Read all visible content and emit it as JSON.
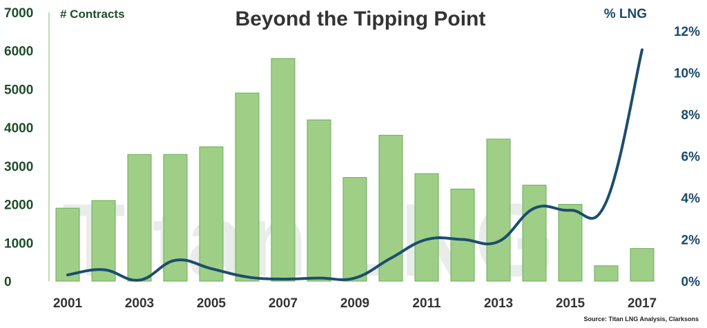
{
  "chart_data": {
    "type": "bar+line",
    "title": "Beyond the Tipping Point",
    "source": "Source: Titan LNG Analysis, Clarksons",
    "watermark_text": "Titan LNG",
    "categories": [
      "2001",
      "2002",
      "2003",
      "2004",
      "2005",
      "2006",
      "2007",
      "2008",
      "2009",
      "2010",
      "2011",
      "2012",
      "2013",
      "2014",
      "2015",
      "2016",
      "2017"
    ],
    "x_tick_labels": [
      "2001",
      "2003",
      "2005",
      "2007",
      "2009",
      "2011",
      "2013",
      "2015",
      "2017"
    ],
    "series": [
      {
        "name": "# Contracts",
        "type": "bar",
        "axis": "left",
        "values": [
          1900,
          2100,
          3300,
          3300,
          3500,
          4900,
          5800,
          4200,
          2700,
          3800,
          2800,
          2400,
          3700,
          2500,
          2000,
          400,
          850
        ]
      },
      {
        "name": "% LNG",
        "type": "line",
        "axis": "right",
        "values": [
          0.3,
          0.55,
          0.05,
          1.0,
          0.6,
          0.2,
          0.1,
          0.15,
          0.15,
          1.1,
          2.0,
          2.0,
          1.9,
          3.5,
          3.4,
          3.8,
          11.1
        ]
      }
    ],
    "y_left": {
      "label": "# Contracts",
      "lim": [
        0,
        7000
      ],
      "ticks": [
        "0",
        "1000",
        "2000",
        "3000",
        "4000",
        "5000",
        "6000",
        "7000"
      ]
    },
    "y_right": {
      "label": "% LNG",
      "lim": [
        0,
        12
      ],
      "ticks": [
        "0%",
        "2%",
        "4%",
        "6%",
        "8%",
        "10%",
        "12%"
      ]
    },
    "colors": {
      "bar_fill": "#9fce86",
      "bar_stroke": "#6aab5a",
      "line": "#1b4d6e",
      "left_axis": "#1e4d2b",
      "right_axis": "#1a4a6b"
    },
    "grid": false
  }
}
